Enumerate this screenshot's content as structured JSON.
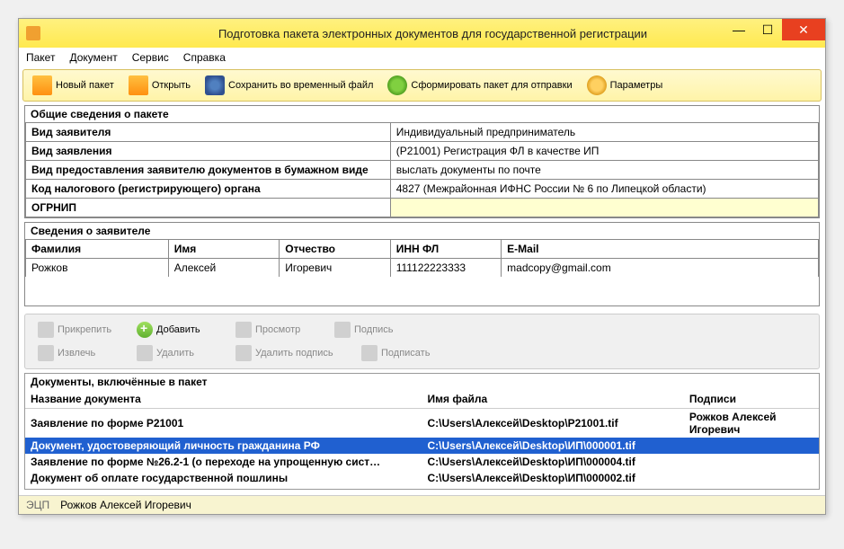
{
  "window": {
    "title": "Подготовка пакета электронных документов для государственной регистрации"
  },
  "menu": {
    "items": [
      "Пакет",
      "Документ",
      "Сервис",
      "Справка"
    ]
  },
  "toolbar": {
    "new": "Новый пакет",
    "open": "Открыть",
    "save": "Сохранить во временный файл",
    "form": "Сформировать пакет для отправки",
    "params": "Параметры"
  },
  "package": {
    "section_title": "Общие сведения о пакете",
    "rows": [
      {
        "label": "Вид заявителя",
        "value": "Индивидуальный предприниматель"
      },
      {
        "label": "Вид заявления",
        "value": "(Р21001) Регистрация ФЛ в качестве ИП"
      },
      {
        "label": "Вид предоставления заявителю документов в бумажном виде",
        "value": "выслать документы по почте"
      },
      {
        "label": "Код налогового (регистрирующего) органа",
        "value": "4827 (Межрайонная ИФНС России № 6 по Липецкой области)"
      },
      {
        "label": "ОГРНИП",
        "value": ""
      }
    ]
  },
  "applicant": {
    "section_title": "Сведения о заявителе",
    "columns": [
      "Фамилия",
      "Имя",
      "Отчество",
      "ИНН ФЛ",
      "E-Mail"
    ],
    "row": [
      "Рожков",
      "Алексей",
      "Игоревич",
      "111122223333",
      "madcopy@gmail.com"
    ]
  },
  "doc_actions": {
    "attach": "Прикрепить",
    "add": "Добавить",
    "view": "Просмотр",
    "sig": "Подпись",
    "extract": "Извлечь",
    "delete": "Удалить",
    "delsig": "Удалить подпись",
    "sign": "Подписать"
  },
  "documents": {
    "section_title": "Документы, включённые в пакет",
    "columns": [
      "Название документа",
      "Имя файла",
      "Подписи"
    ],
    "rows": [
      {
        "name": "Заявление по форме Р21001",
        "file": "C:\\Users\\Алексей\\Desktop\\Р21001.tif",
        "sig": "Рожков Алексей Игоревич",
        "sel": false
      },
      {
        "name": "Документ, удостоверяющий личность гражданина РФ",
        "file": "C:\\Users\\Алексей\\Desktop\\ИП\\000001.tif",
        "sig": "",
        "sel": true
      },
      {
        "name": "Заявление по форме №26.2-1 (о переходе на упрощенную сист…",
        "file": "C:\\Users\\Алексей\\Desktop\\ИП\\000004.tif",
        "sig": "",
        "sel": false
      },
      {
        "name": "Документ об оплате государственной пошлины",
        "file": "C:\\Users\\Алексей\\Desktop\\ИП\\000002.tif",
        "sig": "",
        "sel": false
      }
    ]
  },
  "status": {
    "label": "ЭЦП",
    "value": "Рожков Алексей Игоревич"
  }
}
